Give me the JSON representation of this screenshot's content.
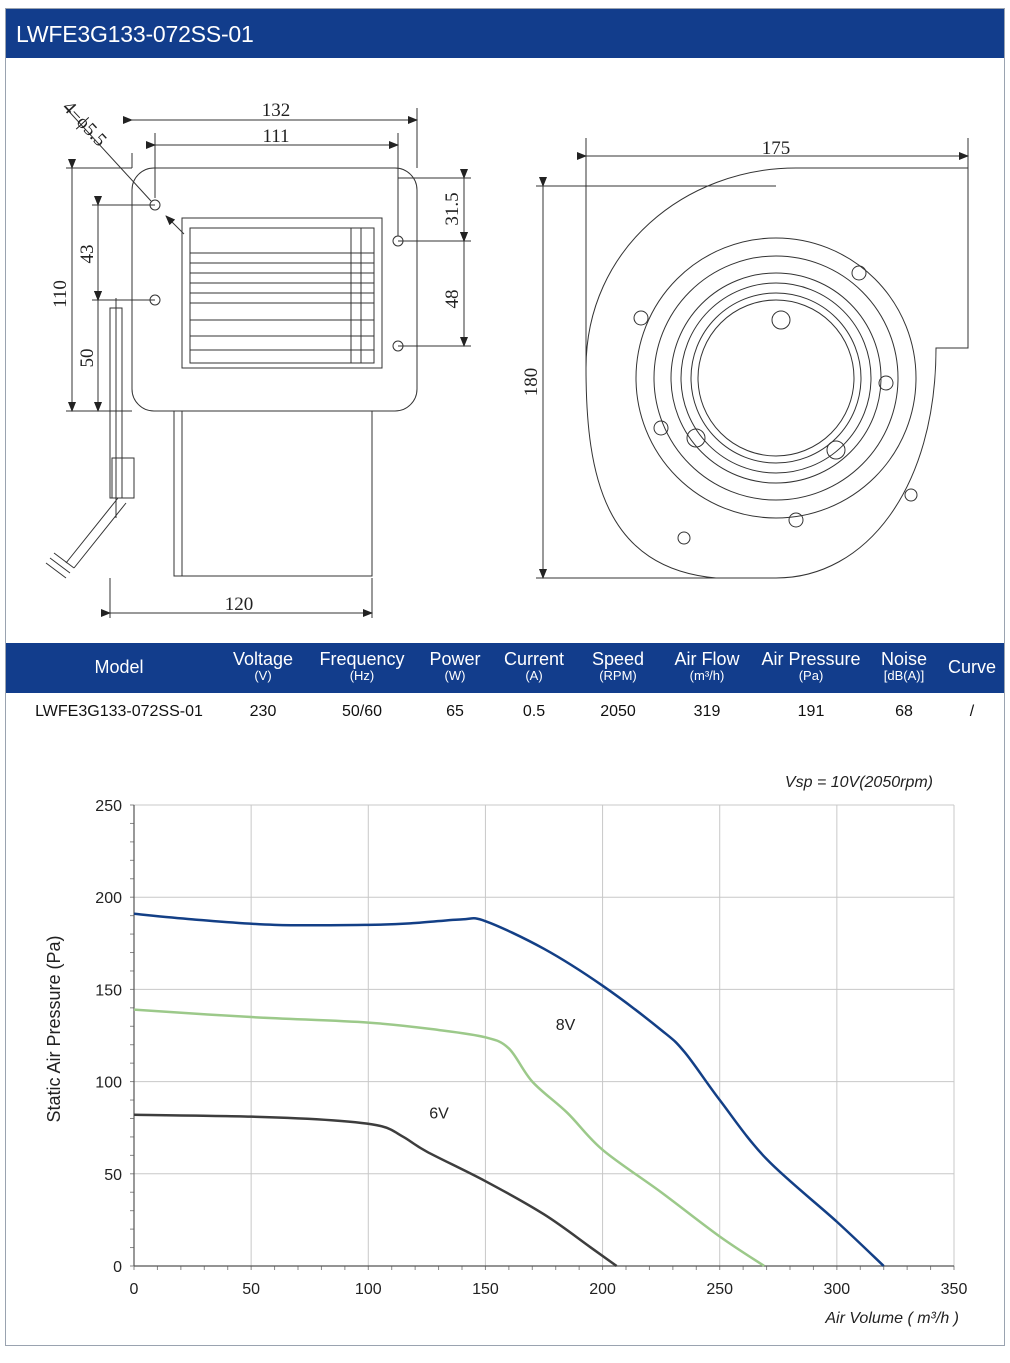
{
  "header": {
    "title": "LWFE3G133-072SS-01"
  },
  "drawing": {
    "dims": {
      "hole": "4−ϕ5.5",
      "w132": "132",
      "w111": "111",
      "h110": "110",
      "h43": "43",
      "h50": "50",
      "h31_5": "31.5",
      "h48": "48",
      "w120": "120",
      "w175": "175",
      "h180": "180"
    }
  },
  "spec": {
    "headers": [
      {
        "label": "Model",
        "unit": ""
      },
      {
        "label": "Voltage",
        "unit": "(V)"
      },
      {
        "label": "Frequency",
        "unit": "(Hz)"
      },
      {
        "label": "Power",
        "unit": "(W)"
      },
      {
        "label": "Current",
        "unit": "(A)"
      },
      {
        "label": "Speed",
        "unit": "(RPM)"
      },
      {
        "label": "Air Flow",
        "unit": "(m³/h)"
      },
      {
        "label": "Air Pressure",
        "unit": "(Pa)"
      },
      {
        "label": "Noise",
        "unit": "[dB(A)]"
      },
      {
        "label": "Curve",
        "unit": ""
      }
    ],
    "row": [
      "LWFE3G133-072SS-01",
      "230",
      "50/60",
      "65",
      "0.5",
      "2050",
      "319",
      "191",
      "68",
      "/"
    ]
  },
  "chart_data": {
    "type": "line",
    "annotation": "Vsp = 10V(2050rpm)",
    "xlabel": "Air Volume ( m³/h )",
    "ylabel": "Static Air Pressure  (Pa)",
    "xlim": [
      0,
      350
    ],
    "ylim": [
      0,
      250
    ],
    "xticks": [
      "0",
      "50",
      "100",
      "150",
      "200",
      "250",
      "300",
      "350"
    ],
    "yticks": [
      "0",
      "50",
      "100",
      "150",
      "200",
      "250"
    ],
    "grid": true,
    "series": [
      {
        "name": "",
        "color": "#133f86",
        "points": [
          [
            0,
            191
          ],
          [
            25,
            188
          ],
          [
            60,
            185
          ],
          [
            100,
            185
          ],
          [
            120,
            186
          ],
          [
            140,
            188
          ],
          [
            150,
            187
          ],
          [
            175,
            172
          ],
          [
            200,
            152
          ],
          [
            225,
            128
          ],
          [
            235,
            116
          ],
          [
            250,
            90
          ],
          [
            270,
            58
          ],
          [
            300,
            24
          ],
          [
            320,
            0
          ]
        ]
      },
      {
        "name": "8V",
        "color": "#9cc98a",
        "points": [
          [
            0,
            139
          ],
          [
            50,
            135
          ],
          [
            100,
            132
          ],
          [
            130,
            128
          ],
          [
            150,
            124
          ],
          [
            160,
            118
          ],
          [
            170,
            100
          ],
          [
            185,
            83
          ],
          [
            200,
            63
          ],
          [
            225,
            40
          ],
          [
            250,
            16
          ],
          [
            269,
            0
          ]
        ]
      },
      {
        "name": "6V",
        "color": "#3d3d3d",
        "points": [
          [
            0,
            82
          ],
          [
            50,
            81
          ],
          [
            85,
            79
          ],
          [
            105,
            76
          ],
          [
            115,
            70
          ],
          [
            125,
            62
          ],
          [
            150,
            46
          ],
          [
            175,
            28
          ],
          [
            195,
            10
          ],
          [
            206,
            0
          ]
        ]
      }
    ]
  }
}
